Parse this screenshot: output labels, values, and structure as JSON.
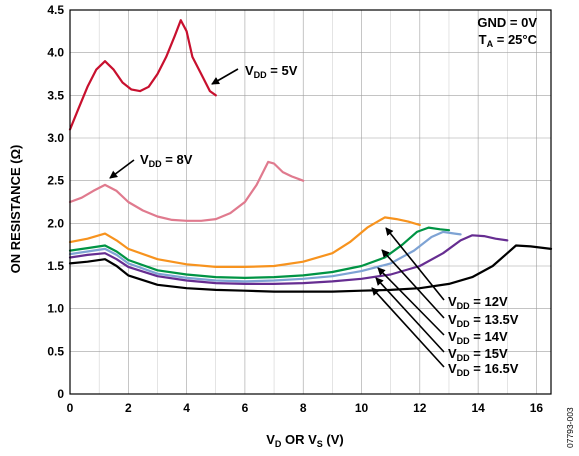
{
  "chart_data": {
    "type": "line",
    "xlabel": {
      "main": "V",
      "sub1": "D",
      "mid": " OR V",
      "sub2": "S",
      "tail": " (V)"
    },
    "ylabel": "ON RESISTANCE (Ω)",
    "xlim": [
      0,
      16.5
    ],
    "ylim": [
      0,
      4.5
    ],
    "xticks": [
      0,
      2,
      4,
      6,
      8,
      10,
      12,
      14,
      16
    ],
    "yticks": [
      0,
      0.5,
      1.0,
      1.5,
      2.0,
      2.5,
      3.0,
      3.5,
      4.0,
      4.5
    ],
    "grid": true,
    "conditions": {
      "line1": "GND = 0V",
      "line2_main": "T",
      "line2_sub": "A",
      "line2_tail": " = 25°C"
    },
    "series": [
      {
        "name": "VDD = 5V",
        "label_main": "V",
        "label_sub": "DD",
        "label_tail": " = 5V",
        "color": "#c8102e",
        "points": [
          [
            0,
            3.1
          ],
          [
            0.3,
            3.35
          ],
          [
            0.6,
            3.6
          ],
          [
            0.9,
            3.8
          ],
          [
            1.2,
            3.9
          ],
          [
            1.5,
            3.8
          ],
          [
            1.8,
            3.65
          ],
          [
            2.1,
            3.57
          ],
          [
            2.4,
            3.55
          ],
          [
            2.7,
            3.6
          ],
          [
            3.0,
            3.75
          ],
          [
            3.3,
            3.95
          ],
          [
            3.6,
            4.2
          ],
          [
            3.8,
            4.38
          ],
          [
            4.0,
            4.25
          ],
          [
            4.2,
            3.95
          ],
          [
            4.5,
            3.75
          ],
          [
            4.8,
            3.55
          ],
          [
            5.0,
            3.5
          ]
        ]
      },
      {
        "name": "VDD = 8V",
        "label_main": "V",
        "label_sub": "DD",
        "label_tail": " = 8V",
        "color": "#e07a8e",
        "points": [
          [
            0,
            2.25
          ],
          [
            0.4,
            2.3
          ],
          [
            0.8,
            2.38
          ],
          [
            1.2,
            2.45
          ],
          [
            1.6,
            2.38
          ],
          [
            2.0,
            2.25
          ],
          [
            2.5,
            2.15
          ],
          [
            3.0,
            2.08
          ],
          [
            3.5,
            2.04
          ],
          [
            4.0,
            2.03
          ],
          [
            4.5,
            2.03
          ],
          [
            5.0,
            2.05
          ],
          [
            5.5,
            2.12
          ],
          [
            6.0,
            2.25
          ],
          [
            6.4,
            2.45
          ],
          [
            6.8,
            2.72
          ],
          [
            7.0,
            2.7
          ],
          [
            7.3,
            2.6
          ],
          [
            7.6,
            2.55
          ],
          [
            8.0,
            2.5
          ]
        ]
      },
      {
        "name": "VDD = 12V",
        "label_main": "V",
        "label_sub": "DD",
        "label_tail": " = 12V",
        "color": "#f7931e",
        "points": [
          [
            0,
            1.78
          ],
          [
            0.6,
            1.82
          ],
          [
            1.2,
            1.88
          ],
          [
            1.6,
            1.8
          ],
          [
            2,
            1.7
          ],
          [
            3,
            1.58
          ],
          [
            4,
            1.52
          ],
          [
            5,
            1.49
          ],
          [
            6,
            1.49
          ],
          [
            7,
            1.5
          ],
          [
            8,
            1.55
          ],
          [
            9,
            1.65
          ],
          [
            9.6,
            1.78
          ],
          [
            10.2,
            1.95
          ],
          [
            10.8,
            2.07
          ],
          [
            11.2,
            2.05
          ],
          [
            11.6,
            2.02
          ],
          [
            12.0,
            1.98
          ]
        ]
      },
      {
        "name": "VDD = 13.5V",
        "label_main": "V",
        "label_sub": "DD",
        "label_tail": " = 13.5V",
        "color": "#009444",
        "points": [
          [
            0,
            1.68
          ],
          [
            0.6,
            1.71
          ],
          [
            1.2,
            1.74
          ],
          [
            1.6,
            1.67
          ],
          [
            2,
            1.57
          ],
          [
            3,
            1.45
          ],
          [
            4,
            1.4
          ],
          [
            5,
            1.37
          ],
          [
            6,
            1.36
          ],
          [
            7,
            1.37
          ],
          [
            8,
            1.39
          ],
          [
            9,
            1.43
          ],
          [
            10,
            1.5
          ],
          [
            10.8,
            1.6
          ],
          [
            11.4,
            1.75
          ],
          [
            11.9,
            1.9
          ],
          [
            12.3,
            1.95
          ],
          [
            12.7,
            1.93
          ],
          [
            13.0,
            1.92
          ]
        ]
      },
      {
        "name": "VDD = 14V",
        "label_main": "V",
        "label_sub": "DD",
        "label_tail": " = 14V",
        "color": "#7ea3d4",
        "points": [
          [
            0,
            1.64
          ],
          [
            0.6,
            1.67
          ],
          [
            1.2,
            1.7
          ],
          [
            1.6,
            1.63
          ],
          [
            2,
            1.53
          ],
          [
            3,
            1.41
          ],
          [
            4,
            1.36
          ],
          [
            5,
            1.33
          ],
          [
            6,
            1.32
          ],
          [
            7,
            1.33
          ],
          [
            8,
            1.35
          ],
          [
            9,
            1.38
          ],
          [
            10,
            1.44
          ],
          [
            11,
            1.53
          ],
          [
            11.8,
            1.68
          ],
          [
            12.4,
            1.84
          ],
          [
            12.8,
            1.9
          ],
          [
            13.2,
            1.88
          ],
          [
            13.4,
            1.87
          ]
        ]
      },
      {
        "name": "VDD = 15V",
        "label_main": "V",
        "label_sub": "DD",
        "label_tail": " = 15V",
        "color": "#662d91",
        "points": [
          [
            0,
            1.6
          ],
          [
            0.6,
            1.63
          ],
          [
            1.2,
            1.65
          ],
          [
            1.6,
            1.58
          ],
          [
            2,
            1.49
          ],
          [
            3,
            1.38
          ],
          [
            4,
            1.33
          ],
          [
            5,
            1.3
          ],
          [
            6,
            1.29
          ],
          [
            7,
            1.29
          ],
          [
            8,
            1.3
          ],
          [
            9,
            1.32
          ],
          [
            10,
            1.35
          ],
          [
            11,
            1.4
          ],
          [
            12,
            1.5
          ],
          [
            12.8,
            1.65
          ],
          [
            13.4,
            1.8
          ],
          [
            13.8,
            1.86
          ],
          [
            14.2,
            1.85
          ],
          [
            14.6,
            1.82
          ],
          [
            15.0,
            1.8
          ]
        ]
      },
      {
        "name": "VDD = 16.5V",
        "label_main": "V",
        "label_sub": "DD",
        "label_tail": " = 16.5V",
        "color": "#000000",
        "points": [
          [
            0,
            1.53
          ],
          [
            0.6,
            1.55
          ],
          [
            1.2,
            1.58
          ],
          [
            1.6,
            1.5
          ],
          [
            2,
            1.39
          ],
          [
            3,
            1.28
          ],
          [
            4,
            1.24
          ],
          [
            5,
            1.22
          ],
          [
            6,
            1.21
          ],
          [
            7,
            1.2
          ],
          [
            8,
            1.2
          ],
          [
            9,
            1.2
          ],
          [
            10,
            1.21
          ],
          [
            11,
            1.22
          ],
          [
            12,
            1.24
          ],
          [
            13,
            1.29
          ],
          [
            13.8,
            1.37
          ],
          [
            14.5,
            1.5
          ],
          [
            15.0,
            1.65
          ],
          [
            15.3,
            1.74
          ],
          [
            15.8,
            1.73
          ],
          [
            16.5,
            1.7
          ]
        ]
      }
    ],
    "figure_code": "07793-003"
  }
}
